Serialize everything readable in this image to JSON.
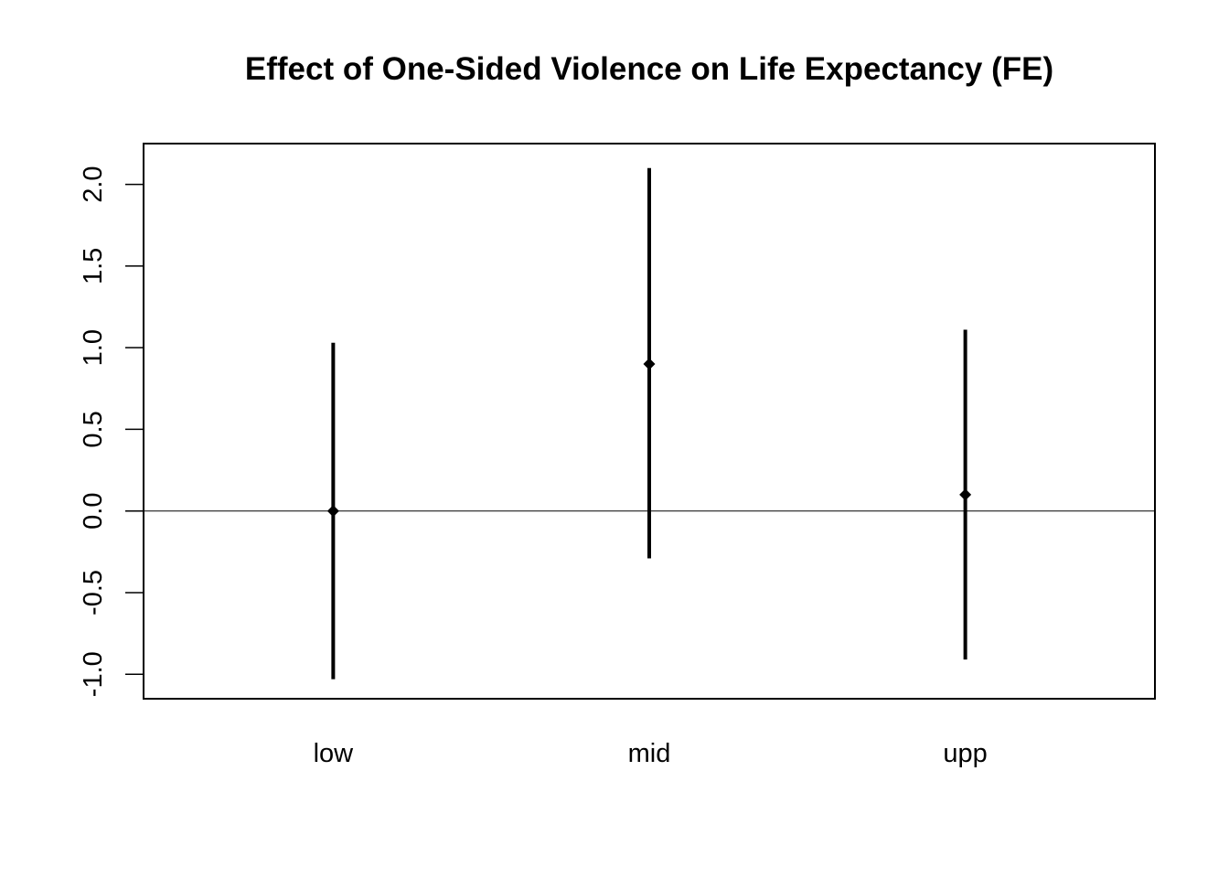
{
  "chart_data": {
    "type": "errorbar",
    "title": "Effect of One-Sided Violence on Life Expectancy (FE)",
    "xlabel": "",
    "ylabel": "",
    "categories": [
      "low",
      "mid",
      "upp"
    ],
    "estimates": [
      0.0,
      0.9,
      0.1
    ],
    "lower": [
      -1.03,
      -0.29,
      -0.91
    ],
    "upper": [
      1.03,
      2.1,
      1.11
    ],
    "ylim": [
      -1.15,
      2.25
    ],
    "yticks": [
      -1.0,
      -0.5,
      0.0,
      0.5,
      1.0,
      1.5,
      2.0
    ],
    "ytick_labels": [
      "-1.0",
      "-0.5",
      "0.0",
      "0.5",
      "1.0",
      "1.5",
      "2.0"
    ],
    "reference_line": 0,
    "grid": false,
    "legend": "none"
  }
}
